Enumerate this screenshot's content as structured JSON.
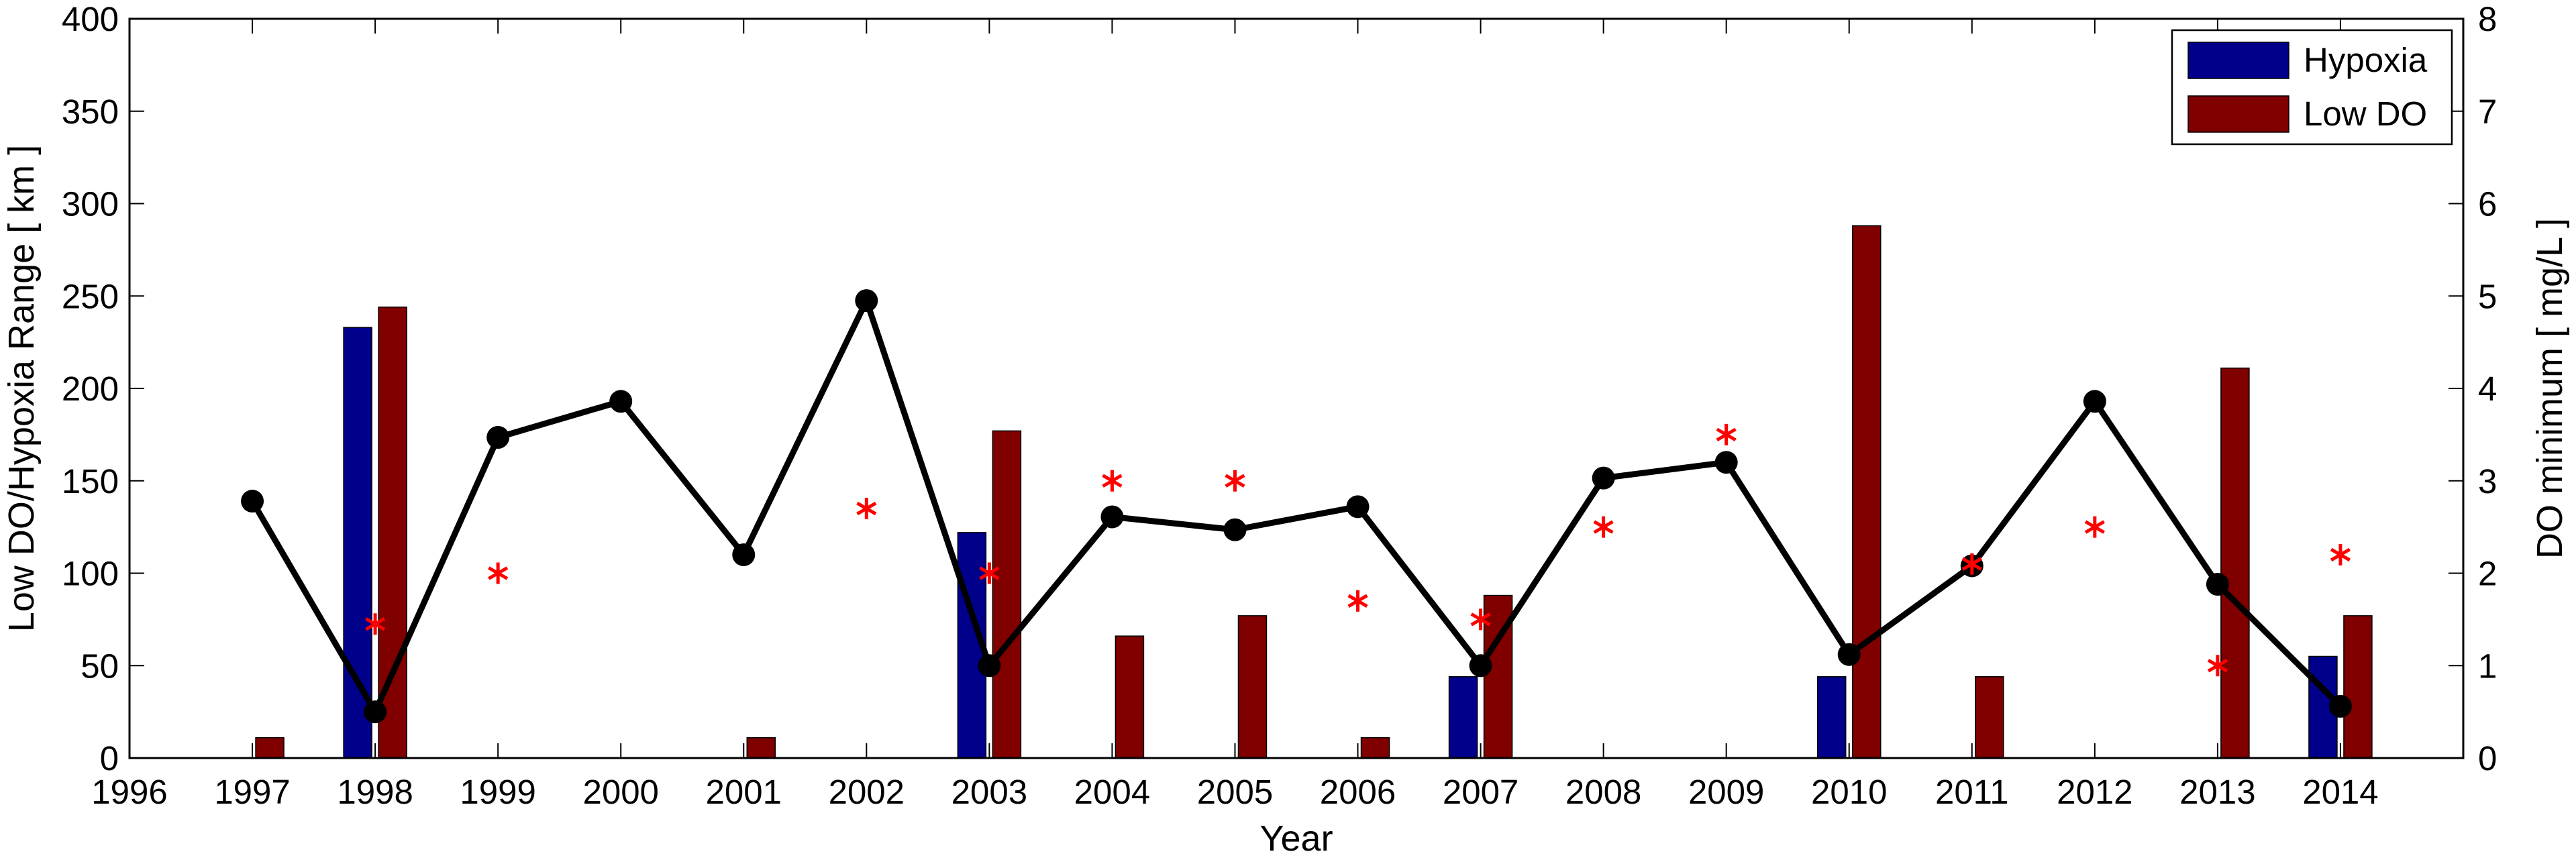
{
  "chart_data": {
    "type": "bar",
    "xlabel": "Year",
    "ylabel": "Low DO/Hypoxia Range [ km ]",
    "y2label": "DO minimum [ mg/L ]",
    "xlim": [
      1996,
      2015
    ],
    "ylim": [
      0,
      400
    ],
    "y2lim": [
      0,
      8
    ],
    "xticks": [
      "1996",
      "1997",
      "1998",
      "1999",
      "2000",
      "2001",
      "2002",
      "2003",
      "2004",
      "2005",
      "2006",
      "2007",
      "2008",
      "2009",
      "2010",
      "2011",
      "2012",
      "2013",
      "2014"
    ],
    "yticks": [
      "0",
      "50",
      "100",
      "150",
      "200",
      "250",
      "300",
      "350",
      "400"
    ],
    "y2ticks": [
      "0",
      "1",
      "2",
      "3",
      "4",
      "5",
      "6",
      "7",
      "8"
    ],
    "legend_position": "top-right",
    "grid": false,
    "categories": [
      1997,
      1998,
      1999,
      2000,
      2001,
      2002,
      2003,
      2004,
      2005,
      2006,
      2007,
      2008,
      2009,
      2010,
      2011,
      2012,
      2013,
      2014
    ],
    "series": [
      {
        "name": "Hypoxia",
        "kind": "bar",
        "axis": "left",
        "color": "#00008B",
        "values": [
          0,
          233,
          0,
          0,
          0,
          0,
          122,
          0,
          0,
          0,
          44,
          0,
          0,
          44,
          0,
          0,
          0,
          55
        ]
      },
      {
        "name": "Low DO",
        "kind": "bar",
        "axis": "left",
        "color": "#800000",
        "values": [
          11,
          244,
          0,
          0,
          11,
          0,
          177,
          66,
          77,
          11,
          88,
          0,
          0,
          288,
          44,
          0,
          211,
          77
        ]
      },
      {
        "kind": "line",
        "axis": "right",
        "color": "#000000",
        "x": [
          1997,
          1998,
          1999,
          2000,
          2001,
          2002,
          2003,
          2004,
          2005,
          2006,
          2007,
          2008,
          2009,
          2010,
          2011,
          2012,
          2013,
          2014
        ],
        "values": [
          2.78,
          0.5,
          3.47,
          3.86,
          2.2,
          4.95,
          1.0,
          2.61,
          2.47,
          2.72,
          1.0,
          3.03,
          3.2,
          1.12,
          2.08,
          3.86,
          1.88,
          0.56
        ]
      },
      {
        "kind": "scatter",
        "axis": "right",
        "color": "#FF0000",
        "x": [
          1998,
          1999,
          2002,
          2003,
          2004,
          2005,
          2006,
          2007,
          2008,
          2009,
          2011,
          2012,
          2013,
          2014
        ],
        "values": [
          1.45,
          2.0,
          2.7,
          2.0,
          3.0,
          3.0,
          1.7,
          1.5,
          2.5,
          3.5,
          2.1,
          2.5,
          1.0,
          2.2
        ]
      }
    ]
  }
}
